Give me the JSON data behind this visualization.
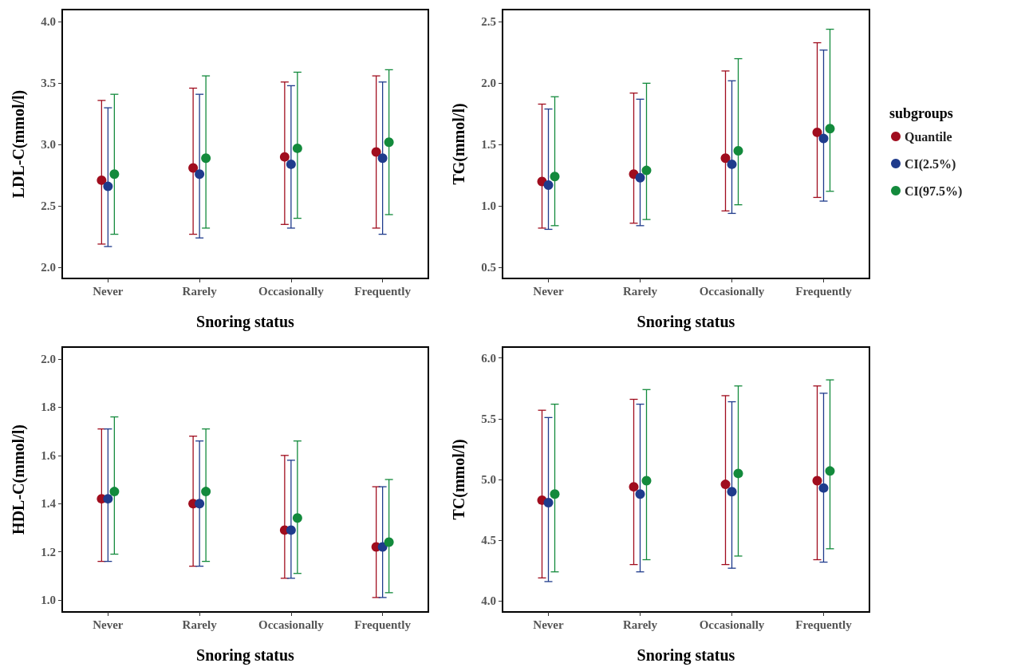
{
  "chart_data": [
    {
      "type": "scatter",
      "categories": [
        "Never",
        "Rarely",
        "Occasionally",
        "Frequently"
      ],
      "xlabel": "Snoring status",
      "ylabel": "LDL-C(mmol/l)",
      "ylim": [
        1.91,
        4.1
      ],
      "yticks": [
        {
          "value": 2,
          "label": "2.0"
        },
        {
          "value": 2.5,
          "label": "2.5"
        },
        {
          "value": 3,
          "label": "3.0"
        },
        {
          "value": 3.5,
          "label": "3.5"
        },
        {
          "value": 4,
          "label": "4.0"
        }
      ],
      "marker": "circle",
      "grid": false,
      "legend": false,
      "series": [
        {
          "color": "#a00d1e",
          "values": [
            2.71,
            2.81,
            2.9,
            2.94
          ],
          "errors": [
            [
              2.19,
              3.36
            ],
            [
              2.27,
              3.46
            ],
            [
              2.35,
              3.51
            ],
            [
              2.32,
              3.56
            ]
          ]
        },
        {
          "color": "#1f3b8c",
          "values": [
            2.66,
            2.76,
            2.84,
            2.89
          ],
          "errors": [
            [
              2.17,
              3.3
            ],
            [
              2.24,
              3.41
            ],
            [
              2.32,
              3.48
            ],
            [
              2.27,
              3.51
            ]
          ]
        },
        {
          "color": "#138a3c",
          "values": [
            2.76,
            2.89,
            2.97,
            3.02
          ],
          "errors": [
            [
              2.27,
              3.41
            ],
            [
              2.32,
              3.56
            ],
            [
              2.4,
              3.59
            ],
            [
              2.43,
              3.61
            ]
          ]
        }
      ]
    },
    {
      "type": "scatter",
      "categories": [
        "Never",
        "Rarely",
        "Occasionally",
        "Frequently"
      ],
      "xlabel": "Snoring status",
      "ylabel": "TG(mmol/l)",
      "ylim": [
        0.41,
        2.6
      ],
      "yticks": [
        {
          "value": 0.5,
          "label": "0.5"
        },
        {
          "value": 1,
          "label": "1.0"
        },
        {
          "value": 1.5,
          "label": "1.5"
        },
        {
          "value": 2,
          "label": "2.0"
        },
        {
          "value": 2.5,
          "label": "2.5"
        }
      ],
      "marker": "circle",
      "grid": false,
      "legend": "right",
      "legend_title": "subgroups",
      "series": [
        {
          "name": "Quantile",
          "color": "#a00d1e",
          "values": [
            1.2,
            1.26,
            1.39,
            1.6
          ],
          "errors": [
            [
              0.82,
              1.83
            ],
            [
              0.86,
              1.92
            ],
            [
              0.96,
              2.1
            ],
            [
              1.07,
              2.33
            ]
          ]
        },
        {
          "name": "CI(2.5%)",
          "color": "#1f3b8c",
          "values": [
            1.17,
            1.23,
            1.34,
            1.55
          ],
          "errors": [
            [
              0.81,
              1.79
            ],
            [
              0.84,
              1.87
            ],
            [
              0.94,
              2.02
            ],
            [
              1.04,
              2.27
            ]
          ]
        },
        {
          "name": "CI(97.5%)",
          "color": "#138a3c",
          "values": [
            1.24,
            1.29,
            1.45,
            1.63
          ],
          "errors": [
            [
              0.84,
              1.89
            ],
            [
              0.89,
              2.0
            ],
            [
              1.01,
              2.2
            ],
            [
              1.12,
              2.44
            ]
          ]
        }
      ]
    },
    {
      "type": "scatter",
      "categories": [
        "Never",
        "Rarely",
        "Occasionally",
        "Frequently"
      ],
      "xlabel": "Snoring status",
      "ylabel": "HDL-C(mmol/l)",
      "ylim": [
        0.95,
        2.05
      ],
      "yticks": [
        {
          "value": 1,
          "label": "1.0"
        },
        {
          "value": 1.2,
          "label": "1.2"
        },
        {
          "value": 1.4,
          "label": "1.4"
        },
        {
          "value": 1.6,
          "label": "1.6"
        },
        {
          "value": 1.8,
          "label": "1.8"
        },
        {
          "value": 2,
          "label": "2.0"
        }
      ],
      "marker": "circle",
      "grid": false,
      "legend": false,
      "series": [
        {
          "color": "#a00d1e",
          "values": [
            1.42,
            1.4,
            1.29,
            1.22
          ],
          "errors": [
            [
              1.16,
              1.71
            ],
            [
              1.14,
              1.68
            ],
            [
              1.09,
              1.6
            ],
            [
              1.01,
              1.47
            ]
          ]
        },
        {
          "color": "#1f3b8c",
          "values": [
            1.42,
            1.4,
            1.29,
            1.22
          ],
          "errors": [
            [
              1.16,
              1.71
            ],
            [
              1.14,
              1.66
            ],
            [
              1.09,
              1.58
            ],
            [
              1.01,
              1.47
            ]
          ]
        },
        {
          "color": "#138a3c",
          "values": [
            1.45,
            1.45,
            1.34,
            1.24
          ],
          "errors": [
            [
              1.19,
              1.76
            ],
            [
              1.16,
              1.71
            ],
            [
              1.11,
              1.66
            ],
            [
              1.03,
              1.5
            ]
          ]
        }
      ]
    },
    {
      "type": "scatter",
      "categories": [
        "Never",
        "Rarely",
        "Occasionally",
        "Frequently"
      ],
      "xlabel": "Snoring status",
      "ylabel": "TC(mmol/l)",
      "ylim": [
        3.91,
        6.09
      ],
      "yticks": [
        {
          "value": 4,
          "label": "4.0"
        },
        {
          "value": 4.5,
          "label": "4.5"
        },
        {
          "value": 5,
          "label": "5.0"
        },
        {
          "value": 5.5,
          "label": "5.5"
        },
        {
          "value": 6,
          "label": "6.0"
        }
      ],
      "marker": "circle",
      "grid": false,
      "legend": false,
      "series": [
        {
          "color": "#a00d1e",
          "values": [
            4.83,
            4.94,
            4.96,
            4.99
          ],
          "errors": [
            [
              4.19,
              5.57
            ],
            [
              4.3,
              5.66
            ],
            [
              4.3,
              5.69
            ],
            [
              4.34,
              5.77
            ]
          ]
        },
        {
          "color": "#1f3b8c",
          "values": [
            4.81,
            4.88,
            4.9,
            4.93
          ],
          "errors": [
            [
              4.16,
              5.51
            ],
            [
              4.24,
              5.62
            ],
            [
              4.27,
              5.64
            ],
            [
              4.32,
              5.71
            ]
          ]
        },
        {
          "color": "#138a3c",
          "values": [
            4.88,
            4.99,
            5.05,
            5.07
          ],
          "errors": [
            [
              4.24,
              5.62
            ],
            [
              4.34,
              5.74
            ],
            [
              4.37,
              5.77
            ],
            [
              4.43,
              5.82
            ]
          ]
        }
      ]
    }
  ]
}
